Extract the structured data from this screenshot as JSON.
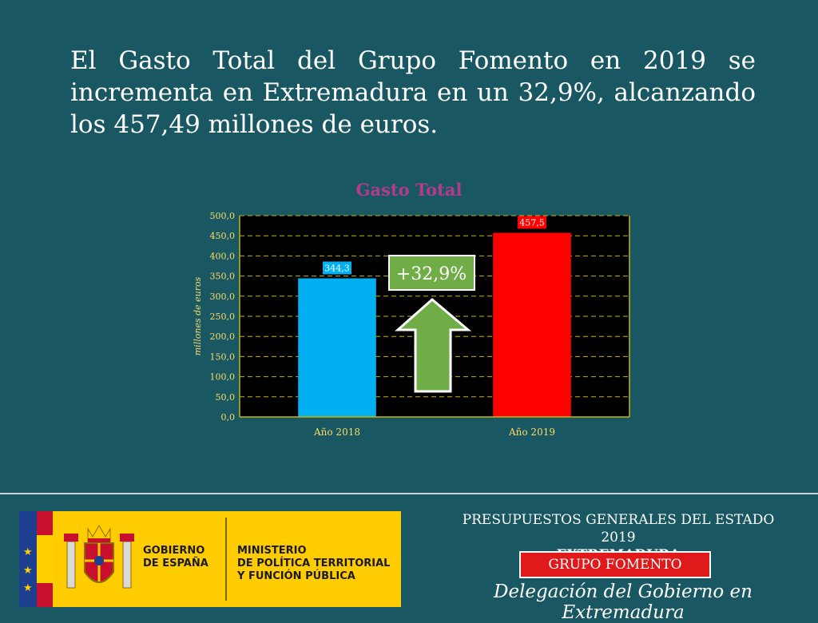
{
  "headline": "El Gasto Total del Grupo Fomento en 2019 se incrementa en Extremadura en un 32,9%, alcanzando los 457,49 millones de euros.",
  "chart_data": {
    "type": "bar",
    "title": "Gasto Total",
    "ylabel": "millones de euros",
    "xlabel": "",
    "categories": [
      "Año 2018",
      "Año 2019"
    ],
    "values": [
      344.3,
      457.5
    ],
    "data_labels": [
      "344,3",
      "457,5"
    ],
    "bar_colors": [
      "#00b0f0",
      "#ff0000"
    ],
    "ylim": [
      0,
      500
    ],
    "yticks": [
      0,
      50,
      100,
      150,
      200,
      250,
      300,
      350,
      400,
      450,
      500
    ],
    "ytick_labels": [
      "0,0",
      "50,0",
      "100,0",
      "150,0",
      "200,0",
      "250,0",
      "300,0",
      "350,0",
      "400,0",
      "450,0",
      "500,0"
    ],
    "grid": true,
    "legend": "none",
    "annotation": "+32,9%",
    "colors": {
      "plot_bg": "#000000",
      "axis": "#c8b400",
      "tick_text": "#ffd966",
      "title": "#b53a8c",
      "arrow": "#70ad47"
    }
  },
  "footer": {
    "budget_line1": "PRESUPUESTOS GENERALES DEL ESTADO 2019",
    "budget_line2": "EXTREMADURA",
    "group": "GRUPO FOMENTO",
    "delegation": "Delegación del Gobierno en Extremadura"
  },
  "logo": {
    "gov_line1": "GOBIERNO",
    "gov_line2": "DE ESPAÑA",
    "ministry_line1": "MINISTERIO",
    "ministry_line2": "DE POLÍTICA TERRITORIAL",
    "ministry_line3": "Y FUNCIÓN PÚBLICA",
    "icons": [
      "eu-stars-icon",
      "spanish-flag-icon",
      "coat-of-arms-icon"
    ],
    "colors": {
      "band": "#ffcc00",
      "flag_red": "#c8102e",
      "eu_blue": "#1d3f8f"
    }
  }
}
